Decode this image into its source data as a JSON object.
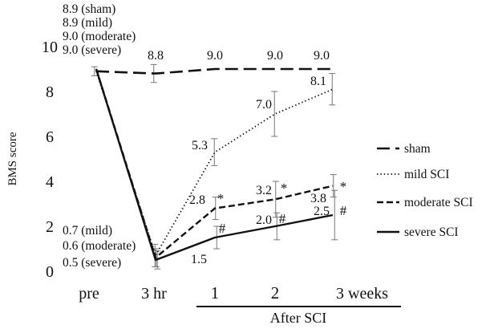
{
  "chart_data": {
    "type": "line",
    "ylabel": "BMS score",
    "x_group_label": "After SCI",
    "categories": [
      "pre",
      "3 hr",
      "1",
      "2",
      "3 weeks"
    ],
    "y_ticks": [
      "0",
      "2",
      "4",
      "6",
      "8",
      "10"
    ],
    "ylim": [
      0,
      10
    ],
    "grid": false,
    "legend_position": "right",
    "series": [
      {
        "name": "sham",
        "style": "long-dash",
        "values": [
          8.9,
          8.8,
          9.0,
          9.0,
          9.0
        ],
        "errors": [
          0.2,
          0.4,
          null,
          null,
          null
        ],
        "labels": [
          null,
          "8.8",
          "9.0",
          "9.0",
          "9.0"
        ],
        "marks": [
          "",
          "",
          "",
          "",
          ""
        ]
      },
      {
        "name": "mild SCI",
        "style": "dotted",
        "values": [
          8.9,
          0.7,
          5.3,
          7.0,
          8.1
        ],
        "errors": [
          null,
          0.5,
          0.6,
          1.0,
          0.7
        ],
        "labels": [
          null,
          null,
          "5.3",
          "7.0",
          "8.1"
        ],
        "marks": [
          "",
          "",
          "",
          "",
          ""
        ]
      },
      {
        "name": "moderate SCI",
        "style": "dashed",
        "values": [
          9.0,
          0.6,
          2.8,
          3.2,
          3.8
        ],
        "errors": [
          null,
          0.4,
          0.5,
          0.8,
          0.5
        ],
        "labels": [
          null,
          null,
          "2.8",
          "3.2",
          "3.8"
        ],
        "marks": [
          "",
          "",
          "*",
          "*",
          "*"
        ]
      },
      {
        "name": "severe SCI",
        "style": "solid",
        "values": [
          9.0,
          0.5,
          1.5,
          2.0,
          2.5
        ],
        "errors": [
          null,
          0.4,
          0.5,
          0.6,
          1.1
        ],
        "labels": [
          null,
          null,
          "1.5",
          "2.0",
          "2.5"
        ],
        "marks": [
          "",
          "",
          "#",
          "#",
          "#"
        ]
      }
    ],
    "annotations": {
      "pre_values": [
        "8.9 (sham)",
        "8.9 (mild)",
        "9.0 (moderate)",
        "9.0 (severe)"
      ],
      "three_hr_values": [
        "0.7 (mild)",
        "0.6 (moderate)",
        "0.5 (severe)"
      ]
    }
  }
}
